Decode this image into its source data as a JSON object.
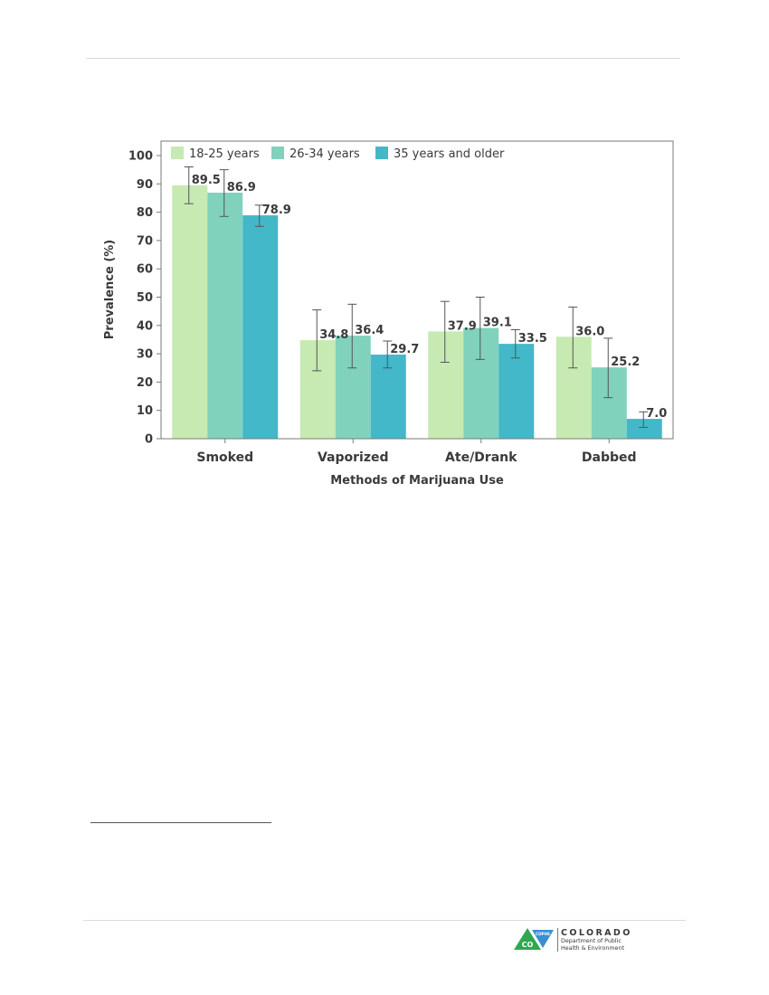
{
  "chart_data": {
    "type": "bar",
    "xlabel": "Methods of Marijuana Use",
    "ylabel": "Prevalence (%)",
    "ylim": [
      0,
      100
    ],
    "yticks": [
      0,
      10,
      20,
      30,
      40,
      50,
      60,
      70,
      80,
      90,
      100
    ],
    "grid": false,
    "legend_position": "top-left",
    "categories": [
      "Smoked",
      "Vaporized",
      "Ate/Drank",
      "Dabbed"
    ],
    "series": [
      {
        "name": "18-25 years",
        "color": "#c6eab2",
        "values": [
          89.5,
          34.8,
          37.9,
          36.0
        ],
        "labels": [
          "89.5",
          "34.8",
          "37.9",
          "36.0"
        ],
        "ci": [
          [
            83.0,
            96.0
          ],
          [
            24.0,
            45.5
          ],
          [
            27.0,
            48.5
          ],
          [
            25.0,
            46.5
          ]
        ]
      },
      {
        "name": "26-34 years",
        "color": "#80d2bd",
        "values": [
          86.9,
          36.4,
          39.1,
          25.2
        ],
        "labels": [
          "86.9",
          "36.4",
          "39.1",
          "25.2"
        ],
        "ci": [
          [
            78.5,
            95.0
          ],
          [
            25.0,
            47.5
          ],
          [
            28.0,
            50.0
          ],
          [
            14.5,
            35.5
          ]
        ]
      },
      {
        "name": "35 years and older",
        "color": "#42b8c8",
        "values": [
          78.9,
          29.7,
          33.5,
          7.0
        ],
        "labels": [
          "78.9",
          "29.7",
          "33.5",
          "7.0"
        ],
        "ci": [
          [
            75.0,
            82.5
          ],
          [
            25.0,
            34.5
          ],
          [
            28.5,
            38.5
          ],
          [
            4.0,
            9.5
          ]
        ]
      }
    ]
  },
  "footer": {
    "logo_badge": "CO",
    "logo_acronym": "CDPHE",
    "logo_title": "COLORADO",
    "logo_line1": "Department of Public",
    "logo_line2": "Health & Environment",
    "logo_colors": {
      "green": "#2fa84f",
      "blue": "#3a8fd0"
    }
  }
}
